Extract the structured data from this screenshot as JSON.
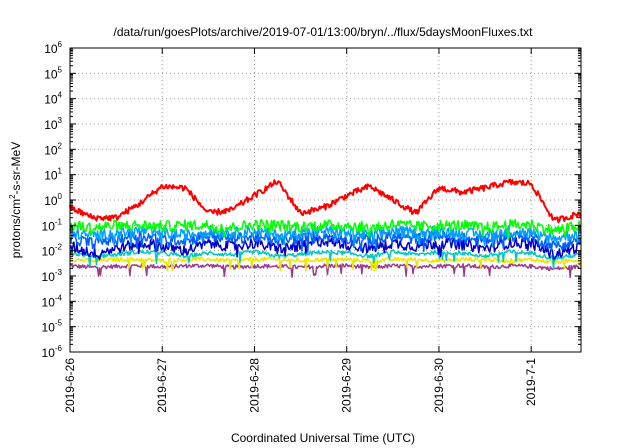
{
  "chart_data": {
    "type": "line",
    "title": "/data/run/goesPlots/archive/2019-07-01/13:00/bryn/../flux/5daysMoonFluxes.txt",
    "xlabel": "Coordinated Universal Time (UTC)",
    "ylabel_parts": [
      "protons/cm",
      "2",
      "-s-sr-MeV"
    ],
    "y_scale": "log",
    "y_tick_exponents": [
      -6,
      -5,
      -4,
      -3,
      -2,
      -1,
      0,
      1,
      2,
      3,
      4,
      5,
      6
    ],
    "y_tick_base": "10",
    "xlim": [
      "2019-06-26",
      "2019-07-01 13:00"
    ],
    "x_tick_labels": [
      "2019-6-26",
      "2019-6-27",
      "2019-6-28",
      "2019-6-29",
      "2019-6-30",
      "2019-7-1"
    ],
    "grid": true,
    "x_days_offset": [
      0,
      0.25,
      0.5,
      0.75,
      1,
      1.25,
      1.5,
      1.75,
      2,
      2.25,
      2.5,
      2.75,
      3,
      3.25,
      3.5,
      3.75,
      4,
      4.25,
      4.5,
      4.75,
      5,
      5.25,
      5.54
    ],
    "series": [
      {
        "color": "#ff0000",
        "values": [
          0.5,
          0.2,
          0.2,
          0.7,
          3.5,
          3.0,
          0.3,
          0.4,
          1.5,
          5.5,
          0.3,
          0.5,
          1.5,
          3.5,
          1.0,
          0.3,
          3.0,
          2.0,
          3.0,
          5.0,
          4.5,
          0.15,
          0.3
        ]
      },
      {
        "color": "#00ff00",
        "values": [
          0.1,
          0.08,
          0.1,
          0.1,
          0.09,
          0.1,
          0.1,
          0.08,
          0.11,
          0.1,
          0.09,
          0.1,
          0.1,
          0.08,
          0.11,
          0.09,
          0.1,
          0.1,
          0.08,
          0.1,
          0.11,
          0.06,
          0.1
        ]
      },
      {
        "color": "#00a0ff",
        "values": [
          0.05,
          0.04,
          0.05,
          0.06,
          0.05,
          0.04,
          0.06,
          0.05,
          0.06,
          0.04,
          0.05,
          0.06,
          0.05,
          0.04,
          0.06,
          0.05,
          0.06,
          0.05,
          0.04,
          0.06,
          0.05,
          0.03,
          0.05
        ]
      },
      {
        "color": "#0060ff",
        "values": [
          0.03,
          0.02,
          0.03,
          0.04,
          0.03,
          0.025,
          0.04,
          0.03,
          0.035,
          0.025,
          0.03,
          0.04,
          0.03,
          0.025,
          0.035,
          0.03,
          0.04,
          0.03,
          0.025,
          0.04,
          0.035,
          0.015,
          0.03
        ]
      },
      {
        "color": "#0000cc",
        "values": [
          0.015,
          0.008,
          0.012,
          0.02,
          0.015,
          0.01,
          0.02,
          0.015,
          0.02,
          0.012,
          0.015,
          0.025,
          0.018,
          0.012,
          0.02,
          0.015,
          0.02,
          0.018,
          0.012,
          0.02,
          0.02,
          0.007,
          0.015
        ]
      },
      {
        "color": "#00c8c8",
        "values": [
          0.008,
          0.006,
          0.007,
          0.009,
          0.008,
          0.006,
          0.008,
          0.007,
          0.009,
          0.006,
          0.007,
          0.009,
          0.008,
          0.006,
          0.009,
          0.007,
          0.009,
          0.008,
          0.006,
          0.009,
          0.008,
          0.005,
          0.007
        ]
      },
      {
        "color": "#e8e800",
        "values": [
          0.0045,
          0.004,
          0.0045,
          0.0045,
          0.004,
          0.0045,
          0.0045,
          0.004,
          0.0045,
          0.0045,
          0.004,
          0.0045,
          0.0045,
          0.004,
          0.0045,
          0.0045,
          0.004,
          0.0045,
          0.0045,
          0.004,
          0.0045,
          0.0035,
          0.0045
        ]
      },
      {
        "color": "#9a3c8c",
        "values": [
          0.0025,
          0.0022,
          0.0024,
          0.0026,
          0.0023,
          0.0025,
          0.0026,
          0.0022,
          0.0025,
          0.0024,
          0.0022,
          0.0025,
          0.0026,
          0.0022,
          0.0025,
          0.0024,
          0.0025,
          0.0026,
          0.0022,
          0.0025,
          0.0024,
          0.0019,
          0.0024
        ]
      }
    ]
  }
}
